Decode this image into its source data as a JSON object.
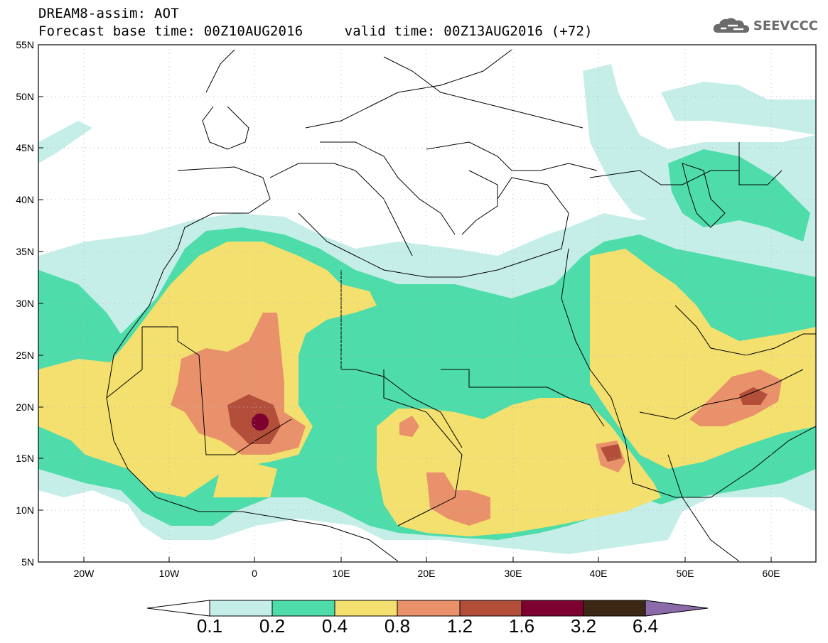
{
  "header": {
    "title_line1": "DREAM8-assim: AOT",
    "title_line2": "Forecast base time: 00Z10AUG2016     valid time: 00Z13AUG2016 (+72)",
    "logo_text": "SEEVCCC"
  },
  "map": {
    "lon_range": [
      -25,
      65
    ],
    "lat_range": [
      5,
      55
    ],
    "lat_labels": [
      "55N",
      "50N",
      "45N",
      "40N",
      "35N",
      "30N",
      "25N",
      "20N",
      "15N",
      "10N",
      "5N"
    ],
    "lon_labels": [
      "20W",
      "10W",
      "0",
      "10E",
      "20E",
      "30E",
      "40E",
      "50E",
      "60E"
    ]
  },
  "colorbar": {
    "labels": [
      "0.1",
      "0.2",
      "0.4",
      "0.8",
      "1.2",
      "1.6",
      "3.2",
      "6.4"
    ],
    "colors": [
      "#c6eee8",
      "#4edcaa",
      "#f4e06e",
      "#e8916a",
      "#b24e3a",
      "#7e0030",
      "#3c2714",
      "#8a6aa8"
    ]
  }
}
